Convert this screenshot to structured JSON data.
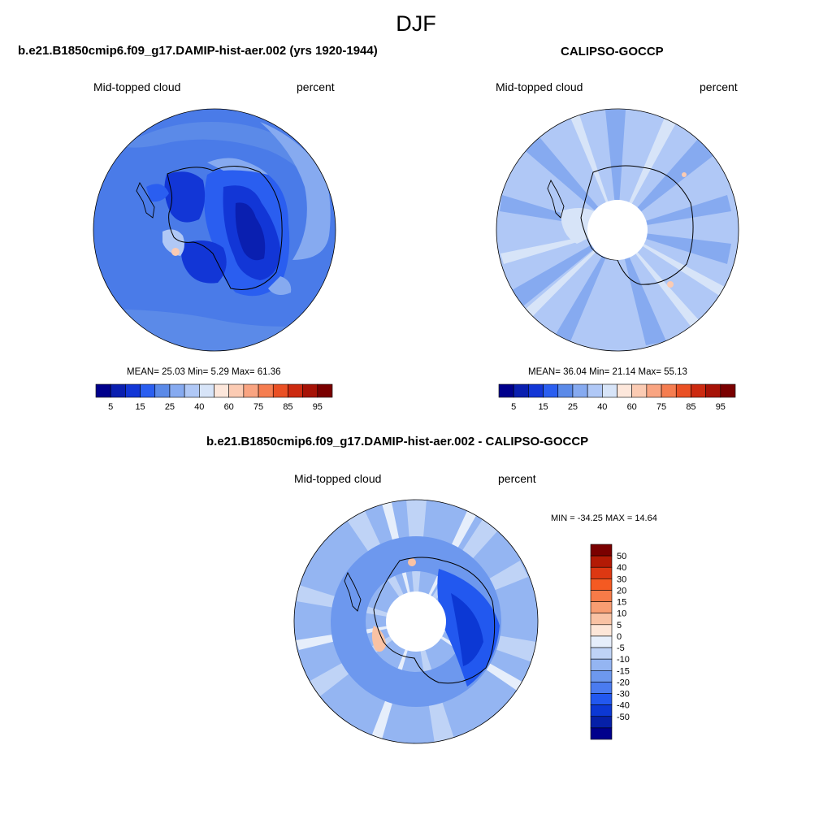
{
  "season": "DJF",
  "panels": {
    "model": {
      "title": "b.e21.B1850cmip6.f09_g17.DAMIP-hist-aer.002 (yrs 1920-1944)",
      "left_label": "Mid-topped cloud",
      "right_label": "percent",
      "stats": "MEAN=  25.03  Min=    5.29  Max=  61.36"
    },
    "obs": {
      "title": "CALIPSO-GOCCP",
      "left_label": "Mid-topped cloud",
      "right_label": "percent",
      "stats": "MEAN=  36.04  Min=  21.14  Max=  55.13"
    },
    "diff": {
      "title": "b.e21.B1850cmip6.f09_g17.DAMIP-hist-aer.002 - CALIPSO-GOCCP",
      "left_label": "Mid-topped cloud",
      "right_label": "percent",
      "minmax": "MIN = -34.25 MAX =  14.64"
    }
  },
  "chart_data": [
    {
      "type": "heatmap",
      "projection": "south-polar-stereographic",
      "title": "b.e21.B1850cmip6.f09_g17.DAMIP-hist-aer.002 (yrs 1920-1944)",
      "variable": "Mid-topped cloud",
      "units": "percent",
      "mean": 25.03,
      "min": 5.29,
      "max": 61.36,
      "colorbar_ticks": [
        "5",
        "15",
        "25",
        "40",
        "60",
        "75",
        "85",
        "95"
      ]
    },
    {
      "type": "heatmap",
      "projection": "south-polar-stereographic",
      "title": "CALIPSO-GOCCP",
      "variable": "Mid-topped cloud",
      "units": "percent",
      "mean": 36.04,
      "min": 21.14,
      "max": 55.13,
      "colorbar_ticks": [
        "5",
        "15",
        "25",
        "40",
        "60",
        "75",
        "85",
        "95"
      ]
    },
    {
      "type": "heatmap",
      "projection": "south-polar-stereographic",
      "title": "b.e21.B1850cmip6.f09_g17.DAMIP-hist-aer.002 - CALIPSO-GOCCP",
      "variable": "Mid-topped cloud",
      "units": "percent",
      "min": -34.25,
      "max": 14.64,
      "colorbar_ticks": [
        "50",
        "40",
        "30",
        "20",
        "15",
        "10",
        "5",
        "0",
        "-5",
        "-10",
        "-15",
        "-20",
        "-30",
        "-40",
        "-50"
      ]
    }
  ],
  "colors": {
    "abs_scale": [
      "#00008c",
      "#0a1fb0",
      "#1236d6",
      "#2a5ef0",
      "#5b8ae8",
      "#86aaf0",
      "#b0c8f6",
      "#d7e4f8",
      "#fde7db",
      "#fbcbb3",
      "#f9a481",
      "#f57d50",
      "#ea5024",
      "#cc2a10",
      "#a61206",
      "#7a0000"
    ],
    "diff_scale": [
      "#7a0000",
      "#b31a05",
      "#dd3812",
      "#f45a22",
      "#f77b48",
      "#f89d72",
      "#f9c2a4",
      "#fde6d8",
      "#e6eefb",
      "#bfd3f6",
      "#94b5f2",
      "#6d98ee",
      "#4a7bf0",
      "#2258ef",
      "#0c38d4",
      "#0620a8",
      "#00008c"
    ],
    "coastline": "#000000"
  }
}
